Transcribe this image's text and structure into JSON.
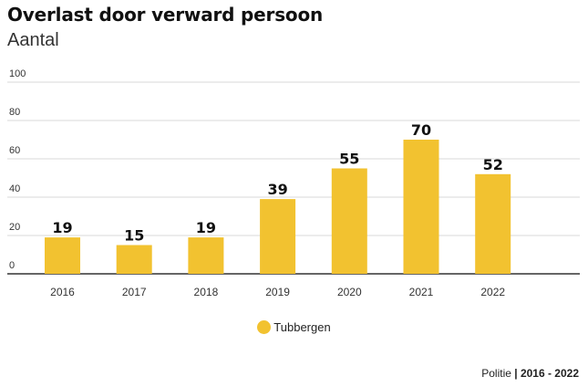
{
  "title": "Overlast door verward persoon",
  "subtitle": "Aantal",
  "source": {
    "prefix": "Politie",
    "range": "| 2016 - 2022"
  },
  "colors": {
    "bar": "#f2c230",
    "grid": "#d9d9d9",
    "axis": "#333333"
  },
  "chart_data": {
    "type": "bar",
    "categories": [
      "2016",
      "2017",
      "2018",
      "2019",
      "2020",
      "2021",
      "2022"
    ],
    "series": [
      {
        "name": "Tubbergen",
        "values": [
          19,
          15,
          19,
          39,
          55,
          70,
          52
        ]
      }
    ],
    "yticks": [
      "0",
      "20",
      "40",
      "60",
      "80",
      "100"
    ],
    "ylim": [
      0,
      100
    ],
    "grid": true,
    "legend": "bottom-center",
    "data_labels": true
  }
}
